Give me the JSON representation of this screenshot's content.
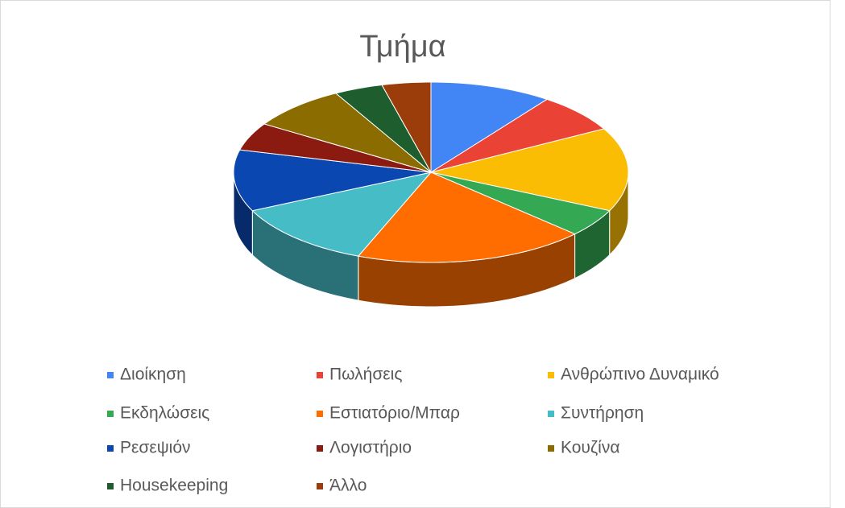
{
  "chart_data": {
    "type": "pie3d",
    "title": "Τμήμα",
    "categories": [
      "Διοίκηση",
      "Πωλήσεις",
      "Ανθρώπινο Δυναμικό",
      "Εκδηλώσεις",
      "Εστιατόριο/Μπαρ",
      "Συντήρηση",
      "Ρεσεψιόν",
      "Λογιστήριο",
      "Κουζίνα",
      "Housekeeping",
      "Άλλο"
    ],
    "values": [
      10,
      7,
      15,
      5,
      19,
      12,
      11,
      5,
      8,
      4,
      4
    ],
    "colors": [
      "#4285f4",
      "#ea4335",
      "#fbbc04",
      "#34a853",
      "#ff6d01",
      "#46bdc6",
      "#0b47b0",
      "#8b1a10",
      "#8a6c00",
      "#1e5e2e",
      "#9a3d0b"
    ],
    "legend": "bottom"
  }
}
